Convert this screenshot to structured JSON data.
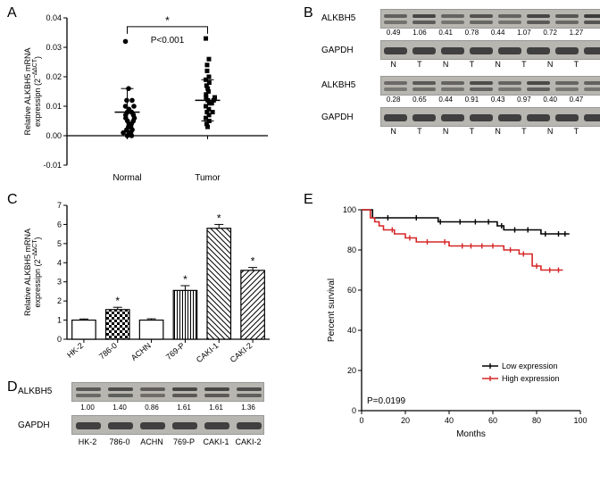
{
  "colors": {
    "axis": "#1a1a1a",
    "black_line": "#000000",
    "red_line": "#d62728",
    "bar_fill": "#ffffff",
    "bar_border": "#000000",
    "blot_bg": "#b8b6b0",
    "band_dark": "#333333"
  },
  "panelA": {
    "label": "A",
    "ylabel": "Relative ALKBH5 mRNA expressipn (2−∆∆CT)",
    "xcats": [
      "Normal",
      "Tumor"
    ],
    "pval": "P<0.001",
    "star": "*",
    "ylim": [
      -0.01,
      0.04
    ],
    "yticks": [
      -0.01,
      0,
      0.01,
      0.02,
      0.03,
      0.04
    ],
    "scatter": {
      "normal": [
        0.0,
        0.0,
        0.001,
        0.001,
        0.001,
        0.002,
        0.002,
        0.003,
        0.003,
        0.004,
        0.004,
        0.005,
        0.005,
        0.006,
        0.006,
        0.007,
        0.007,
        0.008,
        0.008,
        0.009,
        0.01,
        0.01,
        0.012,
        0.012,
        0.016,
        0.032
      ],
      "tumor": [
        0.003,
        0.004,
        0.005,
        0.006,
        0.007,
        0.008,
        0.008,
        0.009,
        0.01,
        0.011,
        0.011,
        0.012,
        0.012,
        0.013,
        0.013,
        0.014,
        0.015,
        0.016,
        0.017,
        0.018,
        0.019,
        0.02,
        0.022,
        0.024,
        0.026,
        0.033
      ]
    },
    "means": {
      "normal": 0.008,
      "tumor": 0.012
    },
    "errs": {
      "normal": 0.008,
      "tumor": 0.007
    }
  },
  "panelB": {
    "label": "B",
    "protein1": "ALKBH5",
    "protein2": "GAPDH",
    "row1_values": [
      "0.49",
      "1.06",
      "0.41",
      "0.78",
      "0.44",
      "1.07",
      "0.72",
      "1.27"
    ],
    "row2_values": [
      "0.28",
      "0.65",
      "0.44",
      "0.91",
      "0.43",
      "0.97",
      "0.40",
      "0.47"
    ],
    "nt_labels": [
      "N",
      "T",
      "N",
      "T",
      "N",
      "T",
      "N",
      "T"
    ]
  },
  "panelC": {
    "label": "C",
    "ylabel": "Relative ALKBH5 mRNA expressipn (2−∆∆CT)",
    "cats": [
      "HK-2",
      "786-0",
      "ACHN",
      "769-P",
      "CAKI-1",
      "CAKI-2"
    ],
    "values": [
      1.0,
      1.55,
      1.0,
      2.55,
      5.8,
      3.6
    ],
    "errs": [
      0.06,
      0.12,
      0.07,
      0.25,
      0.2,
      0.15
    ],
    "stars": [
      "",
      "*",
      "",
      "*",
      "*",
      "*"
    ],
    "ylim": [
      0,
      7
    ],
    "ytick_step": 1,
    "patterns": [
      "plain",
      "checker",
      "plain",
      "vlines",
      "diag-br",
      "diag-bl"
    ]
  },
  "panelD": {
    "label": "D",
    "protein1": "ALKBH5",
    "protein2": "GAPDH",
    "values": [
      "1.00",
      "1.40",
      "0.86",
      "1.61",
      "1.61",
      "1.36"
    ],
    "cats": [
      "HK-2",
      "786-0",
      "ACHN",
      "769-P",
      "CAKI-1",
      "CAKI-2"
    ]
  },
  "panelE": {
    "label": "E",
    "ylabel": "Percent survival",
    "xlabel": "Months",
    "pval": "P=0.0199",
    "legend": [
      "Low expression",
      "High expression"
    ],
    "xlim": [
      0,
      100
    ],
    "ylim": [
      0,
      100
    ],
    "xticks": [
      0,
      20,
      40,
      60,
      80,
      100
    ],
    "yticks": [
      0,
      20,
      40,
      60,
      80,
      100
    ],
    "low": [
      [
        0,
        100
      ],
      [
        5,
        98
      ],
      [
        5,
        96
      ],
      [
        10,
        96
      ],
      [
        35,
        96
      ],
      [
        35,
        94
      ],
      [
        60,
        94
      ],
      [
        62,
        92
      ],
      [
        65,
        92
      ],
      [
        65,
        90
      ],
      [
        82,
        90
      ],
      [
        82,
        88
      ],
      [
        95,
        88
      ]
    ],
    "high": [
      [
        0,
        100
      ],
      [
        4,
        98
      ],
      [
        4,
        96
      ],
      [
        6,
        96
      ],
      [
        6,
        94
      ],
      [
        8,
        94
      ],
      [
        8,
        92
      ],
      [
        10,
        92
      ],
      [
        10,
        90
      ],
      [
        15,
        90
      ],
      [
        15,
        88
      ],
      [
        20,
        88
      ],
      [
        20,
        86
      ],
      [
        25,
        86
      ],
      [
        25,
        84
      ],
      [
        40,
        84
      ],
      [
        40,
        82
      ],
      [
        65,
        82
      ],
      [
        65,
        80
      ],
      [
        72,
        80
      ],
      [
        72,
        78
      ],
      [
        78,
        78
      ],
      [
        78,
        72
      ],
      [
        82,
        72
      ],
      [
        82,
        70
      ],
      [
        92,
        70
      ]
    ],
    "low_ticks": [
      12,
      25,
      36,
      45,
      52,
      58,
      64,
      70,
      76,
      84,
      90,
      93
    ],
    "high_ticks": [
      14,
      22,
      30,
      38,
      46,
      50,
      55,
      60,
      68,
      74,
      80,
      86,
      90
    ]
  }
}
